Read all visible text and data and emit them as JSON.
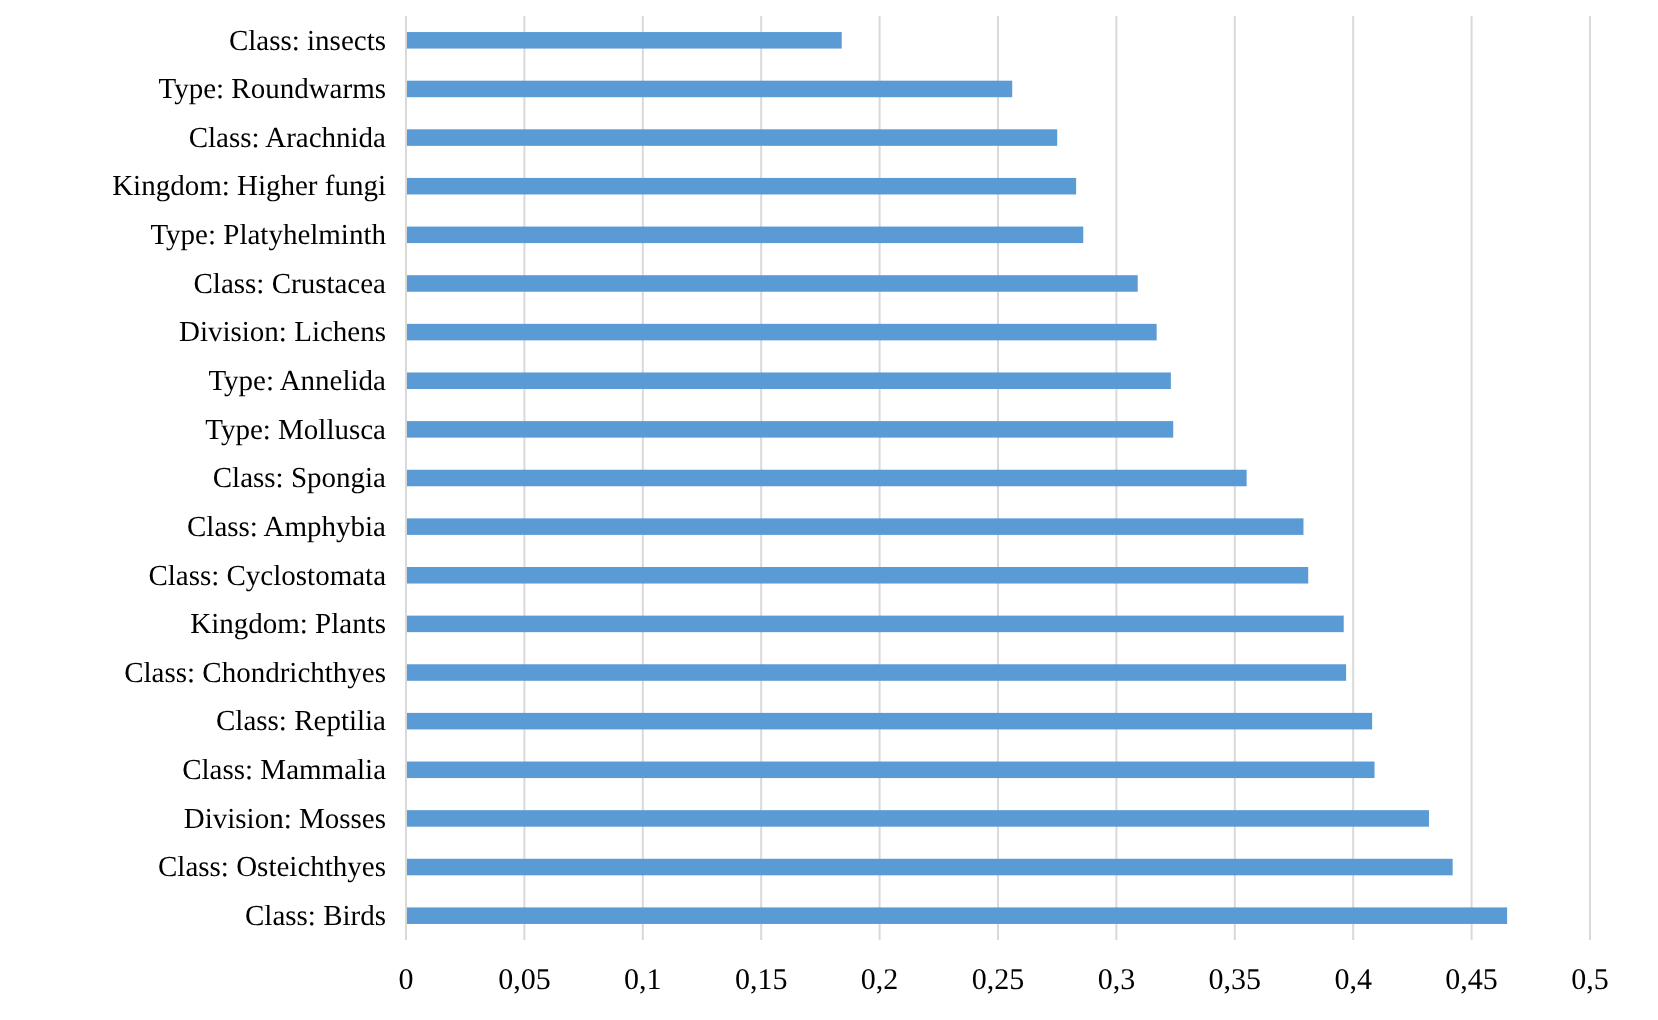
{
  "chart_data": {
    "type": "bar",
    "orientation": "horizontal",
    "categories": [
      "Class: insects",
      "Type: Roundwarms",
      "Class: Arachnida",
      "Kingdom: Higher fungi",
      "Type: Platyhelminth",
      "Class: Crustacea",
      "Division: Lichens",
      "Type: Annelida",
      "Type: Mollusca",
      "Class: Spongia",
      "Class: Amphybia",
      "Class: Cyclostomata",
      "Kingdom: Plants",
      "Class: Chondrichthyes",
      "Class: Reptilia",
      "Class: Mammalia",
      "Division: Mosses",
      "Class: Osteichthyes",
      "Class: Birds"
    ],
    "values": [
      0.184,
      0.256,
      0.275,
      0.283,
      0.286,
      0.309,
      0.317,
      0.323,
      0.324,
      0.355,
      0.379,
      0.381,
      0.396,
      0.397,
      0.408,
      0.409,
      0.432,
      0.442,
      0.465
    ],
    "color": "#5b9bd5",
    "xlim": [
      0,
      0.5
    ],
    "xticks": [
      0,
      {
        "value": 0.05,
        "label": "0,05"
      },
      {
        "value": 0.1,
        "label": "0,1"
      },
      {
        "value": 0.15,
        "label": "0,15"
      },
      {
        "value": 0.2,
        "label": "0,2"
      },
      {
        "value": 0.25,
        "label": "0,25"
      },
      {
        "value": 0.3,
        "label": "0,3"
      },
      {
        "value": 0.35,
        "label": "0,35"
      },
      {
        "value": 0.4,
        "label": "0,4"
      },
      {
        "value": 0.45,
        "label": "0,45"
      },
      {
        "value": 0.5,
        "label": "0,5"
      }
    ],
    "grid": "x"
  }
}
